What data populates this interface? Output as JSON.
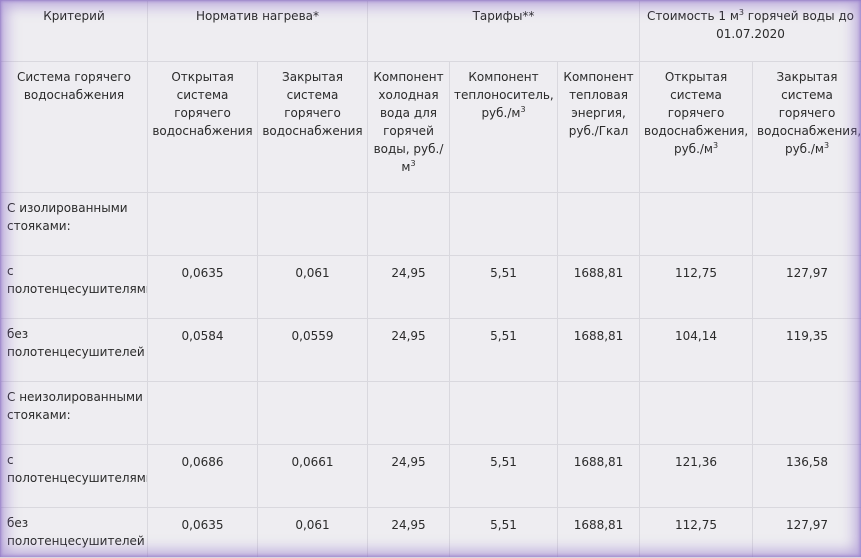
{
  "header_row_1": {
    "criterion": "Критерий",
    "norm": "Норматив нагрева*",
    "tariffs": "Тарифы**",
    "cost_pre": "Стоимость 1 м",
    "cost_sup": "3",
    "cost_post": " горячей воды до 01.07.2020"
  },
  "header_row_2": {
    "system": "Система горячего водоснабжения",
    "open": "Открытая система горячего водоснабжения",
    "closed": "Закрытая система горячего водоснабжения",
    "cold_pre": "Компонент холодная вода для горячей воды, руб./м",
    "cold_sup": "3",
    "carrier_pre": "Компонент теплоноситель, руб./м",
    "carrier_sup": "3",
    "heat": "Компонент тепловая энергия, руб./Гкал",
    "cost_open_pre": "Открытая система горячего водоснабжения, руб./м",
    "cost_open_sup": "3",
    "cost_closed_pre": "Закрытая система горячего водоснабжения, руб./м",
    "cost_closed_sup": "3"
  },
  "rows": [
    {
      "label": "С изолированными стояками:",
      "values": [
        "",
        "",
        "",
        "",
        "",
        "",
        ""
      ]
    },
    {
      "label": "с полотенцесушителями",
      "values": [
        "0,0635",
        "0,061",
        "24,95",
        "5,51",
        "1688,81",
        "112,75",
        "127,97"
      ]
    },
    {
      "label": "без полотенцесушителей",
      "values": [
        "0,0584",
        "0,0559",
        "24,95",
        "5,51",
        "1688,81",
        "104,14",
        "119,35"
      ]
    },
    {
      "label": "С неизолированными стояками:",
      "values": [
        "",
        "",
        "",
        "",
        "",
        "",
        ""
      ]
    },
    {
      "label": "с полотенцесушителями",
      "values": [
        "0,0686",
        "0,0661",
        "24,95",
        "5,51",
        "1688,81",
        "121,36",
        "136,58"
      ]
    },
    {
      "label": "без полотенцесушителей",
      "values": [
        "0,0635",
        "0,061",
        "24,95",
        "5,51",
        "1688,81",
        "112,75",
        "127,97"
      ]
    }
  ]
}
